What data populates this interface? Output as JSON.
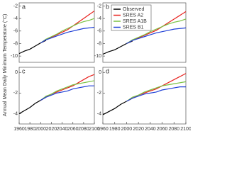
{
  "chart_data": [
    {
      "type": "line",
      "panel_label": "a",
      "ylabel": "Annual Mean Daily Minimum Temperature (°C)",
      "x": [
        1960,
        1970,
        1980,
        1990,
        2000,
        2010,
        2020,
        2030,
        2040,
        2050,
        2060,
        2070,
        2080,
        2090,
        2100
      ],
      "xlim": [
        1960,
        2100
      ],
      "ylim": [
        -11,
        -1.5
      ],
      "yticks": [
        -10,
        -8,
        -6,
        -4,
        -2
      ],
      "series": [
        {
          "color": "#000000",
          "values": [
            -9.6,
            -9.2,
            -8.9,
            -8.4,
            -7.9,
            -7.5,
            null,
            null,
            null,
            null,
            null,
            null,
            null,
            null,
            null
          ]
        },
        {
          "color": "#e8231f",
          "values": [
            null,
            null,
            null,
            null,
            -7.9,
            -7.4,
            -7.0,
            -6.6,
            -6.2,
            -5.8,
            -5.2,
            -4.6,
            -4.0,
            -3.4,
            -2.8
          ]
        },
        {
          "color": "#7ac143",
          "values": [
            null,
            null,
            null,
            null,
            -7.9,
            -7.3,
            -6.9,
            -6.5,
            -6.0,
            -5.6,
            -5.2,
            -4.8,
            -4.5,
            -4.3,
            -4.0
          ]
        },
        {
          "color": "#1f3fd6",
          "values": [
            null,
            null,
            null,
            null,
            -7.9,
            -7.4,
            -7.1,
            -6.8,
            -6.5,
            -6.2,
            -6.0,
            -5.8,
            -5.6,
            -5.5,
            -5.4
          ]
        }
      ]
    },
    {
      "type": "line",
      "panel_label": "b",
      "legend": "upper left",
      "x": [
        1960,
        1970,
        1980,
        1990,
        2000,
        2010,
        2020,
        2030,
        2040,
        2050,
        2060,
        2070,
        2080,
        2090,
        2100
      ],
      "xlim": [
        1960,
        2100
      ],
      "ylim": [
        -11,
        -1.5
      ],
      "yticks": [
        -10,
        -8,
        -6,
        -4,
        -2
      ],
      "series": [
        {
          "name": "Observed",
          "color": "#000000",
          "values": [
            -9.7,
            -9.3,
            -9.0,
            -8.5,
            -8.0,
            -7.6,
            null,
            null,
            null,
            null,
            null,
            null,
            null,
            null,
            null
          ]
        },
        {
          "name": "SRES A2",
          "color": "#e8231f",
          "values": [
            null,
            null,
            null,
            null,
            -8.0,
            -7.5,
            -7.1,
            -6.7,
            -6.3,
            -5.9,
            -5.3,
            -4.7,
            -4.1,
            -3.5,
            -2.9
          ]
        },
        {
          "name": "SRES A1B",
          "color": "#7ac143",
          "values": [
            null,
            null,
            null,
            null,
            -8.0,
            -7.4,
            -7.0,
            -6.6,
            -6.1,
            -5.7,
            -5.3,
            -4.9,
            -4.6,
            -4.4,
            -4.1
          ]
        },
        {
          "name": "SRES B1",
          "color": "#1f3fd6",
          "values": [
            null,
            null,
            null,
            null,
            -8.0,
            -7.5,
            -7.2,
            -6.9,
            -6.6,
            -6.3,
            -6.1,
            -5.9,
            -5.7,
            -5.6,
            -5.5
          ]
        }
      ]
    },
    {
      "type": "line",
      "panel_label": "c",
      "x": [
        1960,
        1970,
        1980,
        1990,
        2000,
        2010,
        2020,
        2030,
        2040,
        2050,
        2060,
        2070,
        2080,
        2090,
        2100
      ],
      "xlim": [
        1960,
        2100
      ],
      "ylim": [
        -5,
        0.5
      ],
      "yticks": [
        -4,
        -2,
        0
      ],
      "xticks": [
        1960,
        1980,
        2000,
        2020,
        2040,
        2060,
        2080,
        2100
      ],
      "series": [
        {
          "color": "#000000",
          "values": [
            -4.0,
            -3.7,
            -3.4,
            -3.0,
            -2.7,
            -2.4,
            null,
            null,
            null,
            null,
            null,
            null,
            null,
            null,
            null
          ]
        },
        {
          "color": "#e8231f",
          "values": [
            null,
            null,
            null,
            null,
            -2.7,
            -2.4,
            -2.1,
            -1.9,
            -1.7,
            -1.5,
            -1.3,
            -1.0,
            -0.7,
            -0.4,
            -0.2
          ]
        },
        {
          "color": "#7ac143",
          "values": [
            null,
            null,
            null,
            null,
            -2.7,
            -2.3,
            -2.1,
            -1.8,
            -1.6,
            -1.4,
            -1.2,
            -1.1,
            -1.0,
            -0.9,
            -0.8
          ]
        },
        {
          "color": "#1f3fd6",
          "values": [
            null,
            null,
            null,
            null,
            -2.7,
            -2.4,
            -2.2,
            -2.0,
            -1.9,
            -1.8,
            -1.6,
            -1.5,
            -1.4,
            -1.3,
            -1.3
          ]
        }
      ]
    },
    {
      "type": "line",
      "panel_label": "d",
      "x": [
        1960,
        1970,
        1980,
        1990,
        2000,
        2010,
        2020,
        2030,
        2040,
        2050,
        2060,
        2070,
        2080,
        2090,
        2100
      ],
      "xlim": [
        1960,
        2100
      ],
      "ylim": [
        -5,
        0.5
      ],
      "yticks": [
        -4,
        -2,
        0
      ],
      "xticks": [
        1960,
        1980,
        2000,
        2020,
        2040,
        2060,
        2080,
        2100
      ],
      "series": [
        {
          "color": "#000000",
          "values": [
            -4.1,
            -3.8,
            -3.5,
            -3.1,
            -2.8,
            -2.5,
            null,
            null,
            null,
            null,
            null,
            null,
            null,
            null,
            null
          ]
        },
        {
          "color": "#e8231f",
          "values": [
            null,
            null,
            null,
            null,
            -2.8,
            -2.5,
            -2.2,
            -2.0,
            -1.8,
            -1.6,
            -1.3,
            -1.0,
            -0.7,
            -0.4,
            -0.1
          ]
        },
        {
          "color": "#7ac143",
          "values": [
            null,
            null,
            null,
            null,
            -2.8,
            -2.4,
            -2.2,
            -1.9,
            -1.7,
            -1.5,
            -1.3,
            -1.2,
            -1.1,
            -1.0,
            -0.9
          ]
        },
        {
          "color": "#1f3fd6",
          "values": [
            null,
            null,
            null,
            null,
            -2.8,
            -2.5,
            -2.3,
            -2.1,
            -2.0,
            -1.9,
            -1.7,
            -1.6,
            -1.5,
            -1.4,
            -1.4
          ]
        }
      ]
    }
  ]
}
